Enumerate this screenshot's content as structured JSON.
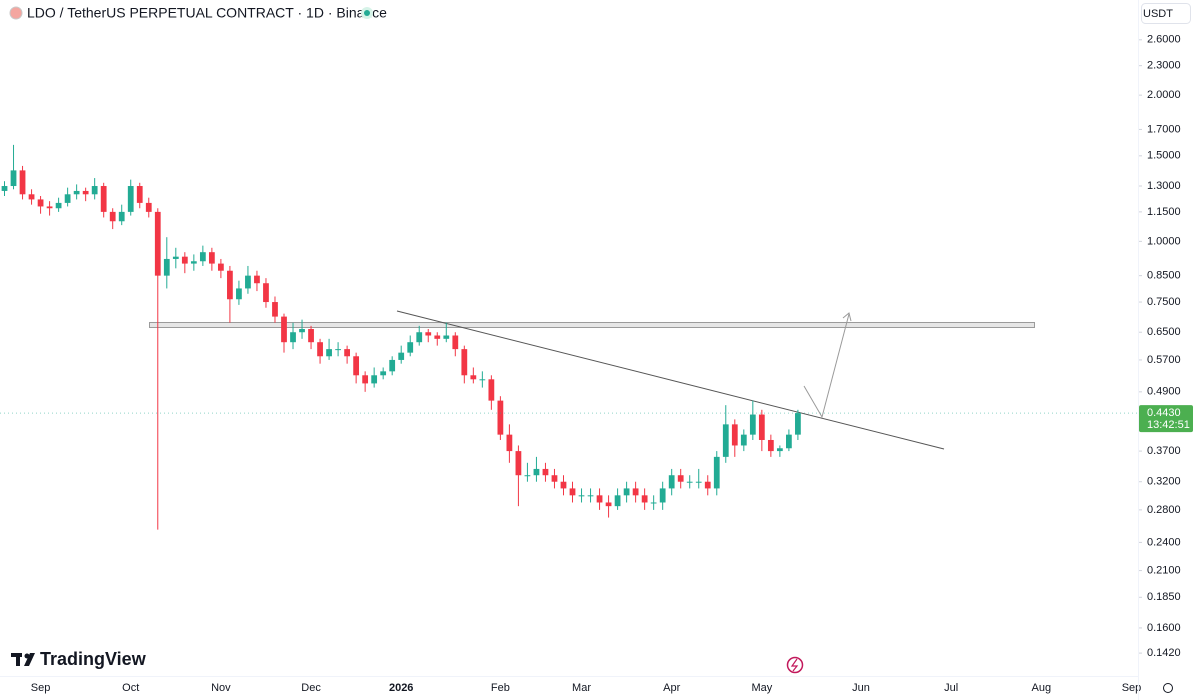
{
  "chart_data": {
    "type": "candlestick",
    "title": "LDO / TetherUS PERPETUAL CONTRACT · 1D · Binance",
    "currency": "USDT",
    "logo": "TradingView",
    "log_scale": true,
    "grid": false,
    "up_color": "#22ab94",
    "down_color": "#f23645",
    "ylim": [
      0.128,
      3.14
    ],
    "yticks": [
      {
        "value": 2.6,
        "label": "2.6000"
      },
      {
        "value": 2.3,
        "label": "2.3000"
      },
      {
        "value": 2.0,
        "label": "2.0000"
      },
      {
        "value": 1.7,
        "label": "1.7000"
      },
      {
        "value": 1.5,
        "label": "1.5000"
      },
      {
        "value": 1.3,
        "label": "1.3000"
      },
      {
        "value": 1.15,
        "label": "1.1500"
      },
      {
        "value": 1.0,
        "label": "1.0000"
      },
      {
        "value": 0.85,
        "label": "0.8500"
      },
      {
        "value": 0.75,
        "label": "0.7500"
      },
      {
        "value": 0.65,
        "label": "0.6500"
      },
      {
        "value": 0.57,
        "label": "0.5700"
      },
      {
        "value": 0.49,
        "label": "0.4900"
      },
      {
        "value": 0.37,
        "label": "0.3700"
      },
      {
        "value": 0.32,
        "label": "0.3200"
      },
      {
        "value": 0.28,
        "label": "0.2800"
      },
      {
        "value": 0.24,
        "label": "0.2400"
      },
      {
        "value": 0.21,
        "label": "0.2100"
      },
      {
        "value": 0.185,
        "label": "0.1850"
      },
      {
        "value": 0.16,
        "label": "0.1600"
      },
      {
        "value": 0.142,
        "label": "0.1420"
      }
    ],
    "last_price": {
      "value": 0.443,
      "label": "0.4430"
    },
    "countdown": "13:42:51",
    "categories": [
      null,
      null,
      null,
      null,
      "Sep",
      null,
      null,
      null,
      null,
      null,
      null,
      null,
      null,
      null,
      "Oct",
      null,
      null,
      null,
      null,
      null,
      null,
      null,
      null,
      null,
      "Nov",
      null,
      null,
      null,
      null,
      null,
      null,
      null,
      null,
      null,
      "Dec",
      null,
      null,
      null,
      null,
      null,
      null,
      null,
      null,
      null,
      "2026",
      null,
      null,
      null,
      null,
      null,
      null,
      null,
      null,
      null,
      null,
      "Feb",
      null,
      null,
      null,
      null,
      null,
      null,
      null,
      null,
      "Mar",
      null,
      null,
      null,
      null,
      null,
      null,
      null,
      null,
      null,
      "Apr",
      null,
      null,
      null,
      null,
      null,
      null,
      null,
      null,
      null,
      "May",
      null,
      null,
      null,
      null,
      null,
      null,
      null,
      null,
      null,
      null,
      "Jun",
      null,
      null,
      null,
      null,
      null,
      null,
      null,
      null,
      null,
      "Jul",
      null,
      null,
      null,
      null,
      null,
      null,
      null,
      null,
      null,
      "Aug",
      null,
      null,
      null,
      null,
      null,
      null,
      null,
      null,
      null,
      "Sep"
    ],
    "open": [
      1.27,
      1.3,
      1.4,
      1.25,
      1.22,
      1.18,
      1.17,
      1.2,
      1.25,
      1.27,
      1.25,
      1.3,
      1.15,
      1.1,
      1.15,
      1.3,
      1.2,
      1.15,
      0.85,
      0.92,
      0.93,
      0.9,
      0.91,
      0.95,
      0.9,
      0.87,
      0.76,
      0.8,
      0.85,
      0.82,
      0.75,
      0.7,
      0.62,
      0.65,
      0.66,
      0.62,
      0.58,
      0.6,
      0.6,
      0.58,
      0.53,
      0.51,
      0.53,
      0.54,
      0.57,
      0.59,
      0.62,
      0.65,
      0.64,
      0.63,
      0.64,
      0.6,
      0.53,
      0.52,
      0.52,
      0.47,
      0.4,
      0.37,
      0.33,
      0.33,
      0.34,
      0.33,
      0.32,
      0.31,
      0.3,
      0.3,
      0.3,
      0.29,
      0.285,
      0.3,
      0.31,
      0.3,
      0.29,
      0.29,
      0.31,
      0.33,
      0.32,
      0.32,
      0.32,
      0.31,
      0.36,
      0.42,
      0.38,
      0.4,
      0.44,
      0.39,
      0.37,
      0.375,
      0.4,
      null,
      null,
      null,
      null,
      null,
      null,
      null,
      null,
      null,
      null,
      null,
      null,
      null,
      null,
      null,
      null,
      null,
      null,
      null,
      null,
      null,
      null,
      null,
      null,
      null,
      null,
      null,
      null,
      null,
      null,
      null,
      null,
      null,
      null,
      null,
      null,
      null
    ],
    "high": [
      1.33,
      1.58,
      1.43,
      1.28,
      1.24,
      1.21,
      1.23,
      1.29,
      1.31,
      1.29,
      1.35,
      1.32,
      1.17,
      1.19,
      1.34,
      1.32,
      1.23,
      1.17,
      1.02,
      0.97,
      0.95,
      0.94,
      0.98,
      0.97,
      0.92,
      0.89,
      0.83,
      0.89,
      0.87,
      0.84,
      0.77,
      0.71,
      0.68,
      0.69,
      0.67,
      0.63,
      0.63,
      0.62,
      0.61,
      0.59,
      0.54,
      0.55,
      0.55,
      0.58,
      0.61,
      0.64,
      0.67,
      0.66,
      0.65,
      0.68,
      0.65,
      0.61,
      0.55,
      0.54,
      0.53,
      0.48,
      0.42,
      0.38,
      0.35,
      0.36,
      0.35,
      0.34,
      0.33,
      0.32,
      0.31,
      0.31,
      0.31,
      0.3,
      0.31,
      0.32,
      0.32,
      0.31,
      0.3,
      0.32,
      0.34,
      0.34,
      0.33,
      0.34,
      0.33,
      0.37,
      0.46,
      0.43,
      0.41,
      0.47,
      0.45,
      0.4,
      0.38,
      0.41,
      0.45,
      null,
      null,
      null,
      null,
      null,
      null,
      null,
      null,
      null,
      null,
      null,
      null,
      null,
      null,
      null,
      null,
      null,
      null,
      null,
      null,
      null,
      null,
      null,
      null,
      null,
      null,
      null,
      null,
      null,
      null,
      null,
      null,
      null,
      null,
      null,
      null,
      null
    ],
    "low": [
      1.24,
      1.28,
      1.22,
      1.19,
      1.14,
      1.13,
      1.15,
      1.18,
      1.22,
      1.21,
      1.22,
      1.12,
      1.06,
      1.08,
      1.13,
      1.17,
      1.12,
      0.255,
      0.8,
      0.88,
      0.86,
      0.87,
      0.89,
      0.87,
      0.84,
      0.68,
      0.74,
      0.78,
      0.79,
      0.73,
      0.68,
      0.59,
      0.6,
      0.63,
      0.6,
      0.56,
      0.57,
      0.58,
      0.56,
      0.51,
      0.49,
      0.5,
      0.52,
      0.53,
      0.56,
      0.58,
      0.61,
      0.62,
      0.61,
      0.62,
      0.58,
      0.51,
      0.51,
      0.5,
      0.45,
      0.39,
      0.35,
      0.285,
      0.32,
      0.32,
      0.32,
      0.31,
      0.3,
      0.29,
      0.29,
      0.29,
      0.28,
      0.27,
      0.28,
      0.29,
      0.29,
      0.28,
      0.28,
      0.28,
      0.3,
      0.31,
      0.31,
      0.31,
      0.3,
      0.3,
      0.35,
      0.36,
      0.37,
      0.39,
      0.37,
      0.36,
      0.36,
      0.37,
      0.39,
      null,
      null,
      null,
      null,
      null,
      null,
      null,
      null,
      null,
      null,
      null,
      null,
      null,
      null,
      null,
      null,
      null,
      null,
      null,
      null,
      null,
      null,
      null,
      null,
      null,
      null,
      null,
      null,
      null,
      null,
      null,
      null,
      null,
      null,
      null,
      null,
      null
    ],
    "close": [
      1.3,
      1.4,
      1.25,
      1.22,
      1.18,
      1.17,
      1.2,
      1.25,
      1.27,
      1.25,
      1.3,
      1.15,
      1.1,
      1.15,
      1.3,
      1.2,
      1.15,
      0.85,
      0.92,
      0.93,
      0.9,
      0.91,
      0.95,
      0.9,
      0.87,
      0.76,
      0.8,
      0.85,
      0.82,
      0.75,
      0.7,
      0.62,
      0.65,
      0.66,
      0.62,
      0.58,
      0.6,
      0.6,
      0.58,
      0.53,
      0.51,
      0.53,
      0.54,
      0.57,
      0.59,
      0.62,
      0.65,
      0.64,
      0.63,
      0.64,
      0.6,
      0.53,
      0.52,
      0.52,
      0.47,
      0.4,
      0.37,
      0.33,
      0.33,
      0.34,
      0.33,
      0.32,
      0.31,
      0.3,
      0.3,
      0.3,
      0.29,
      0.285,
      0.3,
      0.31,
      0.3,
      0.29,
      0.29,
      0.31,
      0.33,
      0.32,
      0.32,
      0.32,
      0.31,
      0.36,
      0.42,
      0.38,
      0.4,
      0.44,
      0.39,
      0.37,
      0.375,
      0.4,
      0.443,
      null,
      null,
      null,
      null,
      null,
      null,
      null,
      null,
      null,
      null,
      null,
      null,
      null,
      null,
      null,
      null,
      null,
      null,
      null,
      null,
      null,
      null,
      null,
      null,
      null,
      null,
      null,
      null,
      null,
      null,
      null,
      null,
      null,
      null,
      null,
      null,
      null
    ]
  }
}
